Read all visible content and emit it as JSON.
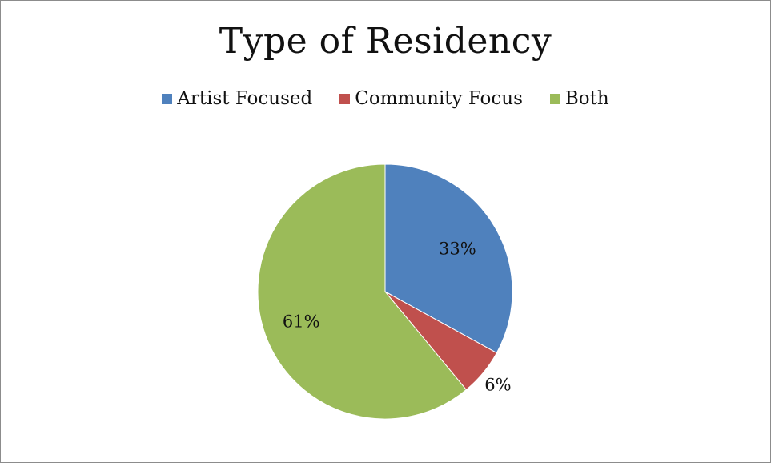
{
  "chart_data": {
    "type": "pie",
    "title": "Type of Residency",
    "categories": [
      "Artist Focused",
      "Community Focus",
      "Both"
    ],
    "values": [
      33,
      6,
      61
    ],
    "data_labels": [
      "33%",
      "6%",
      "61%"
    ],
    "colors": [
      "#4F81BD",
      "#C0504D",
      "#9BBB59"
    ],
    "legend": "top",
    "start_angle_deg": 0,
    "direction": "clockwise"
  }
}
